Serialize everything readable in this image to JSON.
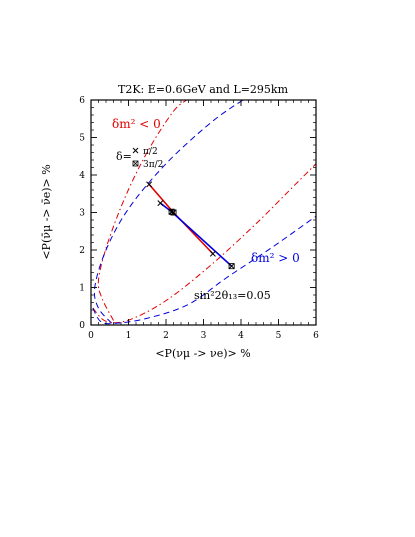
{
  "chart_data": {
    "type": "line",
    "title": "T2K: E=0.6GeV and L=295km",
    "xlabel": "<P(νμ -> νe)> %",
    "ylabel": "<P(ν̄μ -> ν̄e)> %",
    "xlim": [
      0,
      6
    ],
    "ylim": [
      0,
      6
    ],
    "xticks": [
      "0",
      "1",
      "2",
      "3",
      "4",
      "5",
      "6"
    ],
    "yticks": [
      "0",
      "1",
      "2",
      "3",
      "4",
      "5",
      "6"
    ],
    "grid": false,
    "annotations": {
      "dm2_negative": "δm² < 0",
      "dm2_positive": "δm² > 0",
      "delta_label": "δ=",
      "delta_pi2": "π/2",
      "delta_3pi2": "3π/2",
      "theta": "sin²2θ₁₃=0.05"
    },
    "series": [
      {
        "name": "",
        "style": "dash-dot",
        "color": "#e00000",
        "points": [
          [
            0.6,
            0.12
          ],
          [
            0.3,
            0.7
          ],
          [
            0.2,
            1.2
          ],
          [
            0.45,
            2.2
          ],
          [
            0.95,
            3.5
          ],
          [
            1.55,
            4.7
          ],
          [
            2.2,
            5.7
          ],
          [
            2.55,
            6.0
          ]
        ]
      },
      {
        "name": "",
        "style": "dash",
        "color": "#0000dd",
        "points": [
          [
            0.55,
            0.05
          ],
          [
            0.2,
            0.45
          ],
          [
            0.1,
            1.0
          ],
          [
            0.4,
            2.0
          ],
          [
            1.0,
            3.1
          ],
          [
            2.0,
            4.3
          ],
          [
            3.2,
            5.4
          ],
          [
            4.05,
            6.0
          ]
        ]
      },
      {
        "name": "",
        "style": "dash-dot",
        "color": "#e00000",
        "points": [
          [
            0.05,
            0.45
          ],
          [
            0.4,
            0.1
          ],
          [
            1.0,
            0.13
          ],
          [
            2.0,
            0.65
          ],
          [
            3.2,
            1.6
          ],
          [
            4.4,
            2.7
          ],
          [
            5.5,
            3.8
          ],
          [
            6.0,
            4.3
          ]
        ]
      },
      {
        "name": "",
        "style": "dash",
        "color": "#0000dd",
        "points": [
          [
            0.05,
            0.45
          ],
          [
            0.25,
            0.1
          ],
          [
            0.6,
            0.04
          ],
          [
            1.5,
            0.18
          ],
          [
            2.6,
            0.55
          ],
          [
            3.6,
            1.25
          ],
          [
            4.8,
            2.05
          ],
          [
            6.0,
            2.9
          ]
        ]
      },
      {
        "name": "",
        "style": "solid",
        "color": "#e00000",
        "points": [
          [
            1.55,
            3.75
          ],
          [
            2.2,
            3.0
          ],
          [
            3.25,
            1.9
          ]
        ]
      },
      {
        "name": "",
        "style": "solid",
        "color": "#0000dd",
        "points": [
          [
            1.85,
            3.25
          ],
          [
            2.15,
            3.02
          ],
          [
            3.75,
            1.57
          ]
        ]
      }
    ],
    "markers": [
      {
        "name": "π/2",
        "symbol": "x",
        "x": 1.55,
        "y": 3.75
      },
      {
        "name": "3π/2",
        "symbol": "box-x",
        "x": 2.2,
        "y": 3.0
      },
      {
        "name": "π/2",
        "symbol": "x",
        "x": 1.85,
        "y": 3.25
      },
      {
        "name": "3π/2",
        "symbol": "box-x",
        "x": 2.15,
        "y": 3.02
      },
      {
        "name": "π/2",
        "symbol": "x",
        "x": 3.25,
        "y": 1.9
      },
      {
        "name": "3π/2",
        "symbol": "box-x",
        "x": 3.75,
        "y": 1.57
      }
    ]
  }
}
